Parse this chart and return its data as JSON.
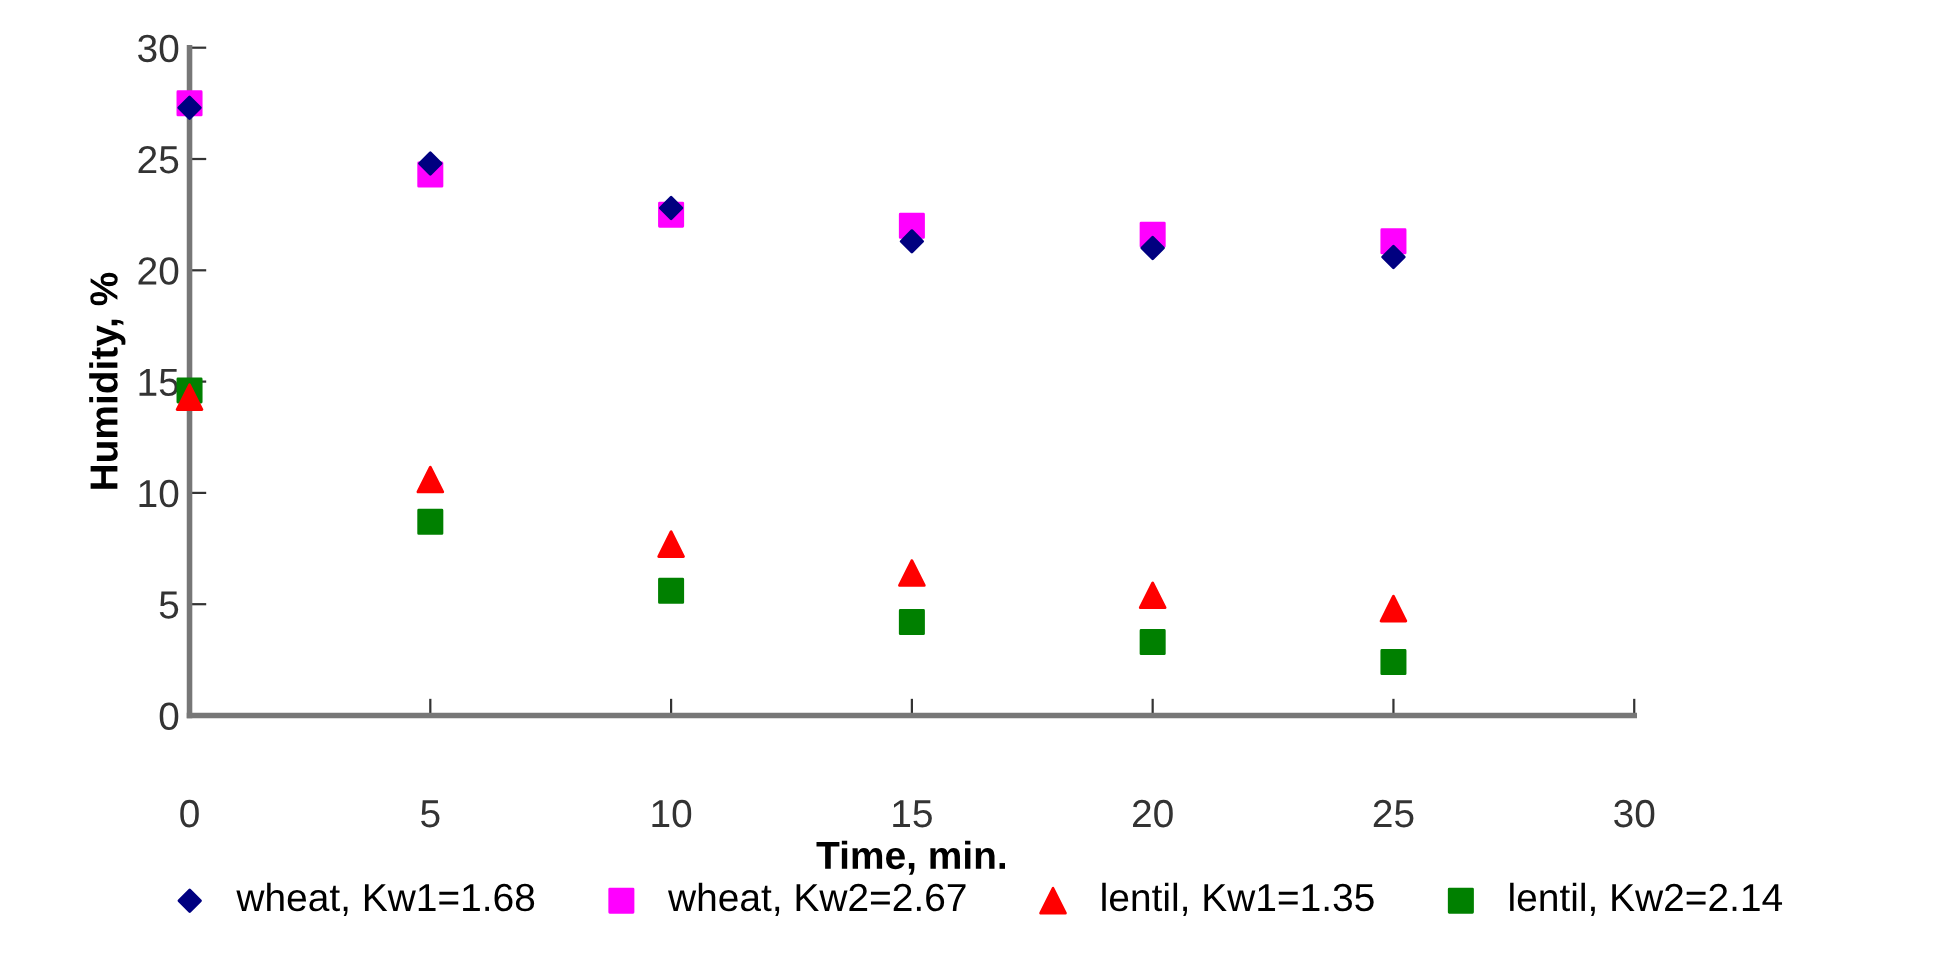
{
  "chart_data": {
    "type": "scatter",
    "xlabel": "Time, min.",
    "ylabel": "Humidity, %",
    "x": [
      0,
      5,
      10,
      15,
      20,
      25
    ],
    "series": [
      {
        "name": "wheat, Kw1=1.68",
        "color": "#000080",
        "marker": "diamond",
        "values": [
          27.3,
          24.8,
          22.8,
          21.3,
          21.0,
          20.6
        ]
      },
      {
        "name": "wheat, Kw2=2.67",
        "color": "#ff00ff",
        "marker": "square",
        "values": [
          27.5,
          24.3,
          22.5,
          22.0,
          21.6,
          21.3
        ]
      },
      {
        "name": "lentil, Kw1=1.35",
        "color": "#ff0000",
        "marker": "triangle",
        "values": [
          14.3,
          10.6,
          7.7,
          6.4,
          5.4,
          4.8
        ]
      },
      {
        "name": "lentil, Kw2=2.14",
        "color": "#008000",
        "marker": "square",
        "values": [
          14.6,
          8.7,
          5.6,
          4.2,
          3.3,
          2.4
        ]
      }
    ],
    "xlim": [
      0,
      30
    ],
    "xticks": [
      0,
      5,
      10,
      15,
      20,
      25,
      30
    ],
    "ylim": [
      0,
      30
    ],
    "yticks": [
      0,
      5,
      10,
      15,
      20,
      25,
      30
    ],
    "grid": false,
    "legend": "bottom"
  }
}
